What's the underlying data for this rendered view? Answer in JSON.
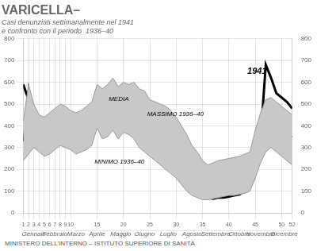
{
  "chart_data": {
    "type": "line",
    "title": "VARICELLA–",
    "subtitle": [
      "Casi denunziati settimanalmente nel 1941",
      "e confronto con il periodo  1936–40"
    ],
    "footer": "MINISTERO DELL’INTERNO  –  ISTITUTO SUPERIORE DI SANITÀ",
    "x": [
      1,
      2,
      3,
      4,
      5,
      6,
      7,
      8,
      9,
      10,
      11,
      12,
      13,
      14,
      15,
      16,
      17,
      18,
      19,
      20,
      21,
      22,
      23,
      24,
      25,
      26,
      27,
      28,
      29,
      30,
      31,
      32,
      33,
      34,
      35,
      36,
      37,
      38,
      39,
      40,
      41,
      42,
      43,
      44,
      45,
      46,
      47,
      48,
      49,
      50,
      51,
      52
    ],
    "series": [
      {
        "color": "#999999",
        "values": [
          240,
          270,
          300,
          280,
          260,
          270,
          290,
          310,
          300,
          290,
          270,
          280,
          290,
          310,
          390,
          340,
          350,
          380,
          340,
          370,
          360,
          340,
          300,
          280,
          260,
          240,
          220,
          200,
          180,
          160,
          130,
          100,
          80,
          70,
          60,
          60,
          65,
          70,
          75,
          80,
          80,
          85,
          90,
          100,
          160,
          230,
          280,
          300,
          280,
          260,
          240,
          220
        ]
      },
      {
        "color": "#999999",
        "values": [
          420,
          590,
          500,
          450,
          440,
          460,
          480,
          500,
          490,
          470,
          460,
          470,
          490,
          510,
          590,
          570,
          590,
          620,
          580,
          600,
          590,
          600,
          570,
          560,
          520,
          510,
          500,
          490,
          470,
          440,
          400,
          360,
          310,
          280,
          240,
          220,
          230,
          240,
          245,
          250,
          255,
          260,
          270,
          280,
          380,
          460,
          520,
          530,
          510,
          490,
          470,
          450
        ]
      },
      {
        "color": "#000000",
        "values": [
          330,
          580,
          430,
          370,
          360,
          390,
          410,
          430,
          420,
          400,
          380,
          390,
          410,
          430,
          510,
          470,
          480,
          510,
          470,
          500,
          490,
          480,
          450,
          430,
          400,
          390,
          380,
          360,
          340,
          310,
          260,
          220,
          180,
          160,
          150,
          150,
          155,
          160,
          165,
          170,
          175,
          180,
          190,
          200,
          280,
          360,
          420,
          430,
          410,
          390,
          370,
          350
        ]
      },
      {
        "color": "#000000",
        "values": [
          590,
          520,
          450,
          400,
          380,
          400,
          410,
          420,
          420,
          410,
          400,
          420,
          430,
          460,
          520,
          490,
          480,
          510,
          480,
          550,
          545,
          460,
          430,
          400,
          380,
          310,
          300,
          270,
          230,
          200,
          190,
          150,
          130,
          100,
          85,
          70,
          65,
          70,
          70,
          75,
          80,
          85,
          100,
          120,
          250,
          340,
          680,
          620,
          550,
          530,
          510,
          480
        ]
      }
    ],
    "annotations": [
      {
        "text": "MEDIA",
        "x": 17.2,
        "y": 508
      },
      {
        "text": "MASSIMO 1936–40",
        "x": 24.5,
        "y": 440
      },
      {
        "text": "MINIMO 1936–40",
        "x": 14.5,
        "y": 220
      },
      {
        "text": "1941",
        "x": 43.5,
        "y": 630
      }
    ],
    "xlim": [
      1,
      52
    ],
    "xticks": [
      1,
      2,
      3,
      4,
      5,
      6,
      7,
      8,
      9,
      10,
      15,
      20,
      25,
      30,
      35,
      40,
      45,
      50,
      52
    ],
    "x2lim": [
      1,
      52
    ],
    "x2ticks": [
      {
        "value": 3,
        "label": "Gennaio"
      },
      {
        "value": 7,
        "label": "Febbraio"
      },
      {
        "value": 11,
        "label": "Marzo"
      },
      {
        "value": 15,
        "label": "Aprile"
      },
      {
        "value": 19.5,
        "label": "Maggio"
      },
      {
        "value": 24,
        "label": "Giugno"
      },
      {
        "value": 28.5,
        "label": "Luglio"
      },
      {
        "value": 33,
        "label": "Agosto"
      },
      {
        "value": 37.5,
        "label": "Settembre"
      },
      {
        "value": 42,
        "label": "Ottobre"
      },
      {
        "value": 46,
        "label": "Novembre"
      },
      {
        "value": 50.5,
        "label": "Dicembre"
      }
    ],
    "ylim": [
      0,
      800
    ],
    "yticks": [
      0,
      100,
      200,
      300,
      400,
      500,
      600,
      700,
      800
    ],
    "y2lim": [
      0,
      800
    ],
    "y2ticks": [
      0,
      100,
      200,
      300,
      400,
      500,
      600,
      700,
      800
    ],
    "grid": true
  }
}
